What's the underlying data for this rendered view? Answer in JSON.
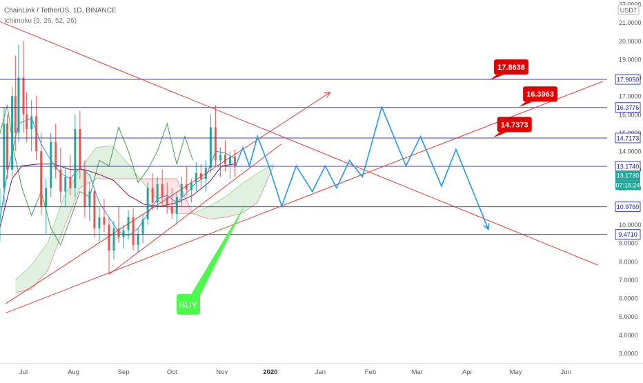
{
  "header": {
    "title": "ChainLink / TetherUS, 1D, BINANCE",
    "indicator": "Ichimoku (9, 26, 52, 26)"
  },
  "colors": {
    "bullish": "#26a69a",
    "bearish": "#ef5350",
    "level_line": "#3f3fd1",
    "trend_line": "#e53935",
    "projection": "#2196f3",
    "ichimoku_conversion": "#2196f3",
    "ichimoku_base": "#880e4f",
    "ichimoku_lagging": "#43a047",
    "ichimoku_lead_a": "#a5d6a7",
    "ichimoku_lead_b": "#ef9a9a",
    "cloud_up": "#c8e6c9",
    "cloud_down": "#ffcdd2",
    "price_badge": "#26a69a",
    "timer_badge": "#26a69a",
    "callout": "#e00000",
    "buy_box": "#4cfa4c"
  },
  "chart_data": {
    "type": "candlestick",
    "symbol": "ChainLink / TetherUS",
    "interval": "1D",
    "exchange": "BINANCE",
    "currency": "USDT",
    "ylim": [
      3.0,
      22.0
    ],
    "y_ticks": [
      "3.0000",
      "4.0000",
      "5.0000",
      "6.0000",
      "7.0000",
      "8.0000",
      "9.0000",
      "10.0000",
      "11.0000",
      "12.0000",
      "13.0000",
      "14.0000",
      "15.0000",
      "16.0000",
      "17.0000",
      "18.0000",
      "19.0000",
      "20.0000",
      "21.0000",
      "22.0000"
    ],
    "x_labels": [
      "Jul",
      "Aug",
      "Sep",
      "Oct",
      "Nov",
      "2020",
      "Jan",
      "Feb",
      "Mar",
      "Apr",
      "May",
      "Jun"
    ],
    "x_label_dates": [
      "2019-07-01",
      "2019-08-01",
      "2019-09-01",
      "2019-10-01",
      "2019-11-01",
      "2019-12-01",
      "2020-01-01",
      "2020-02-01",
      "2020-03-01",
      "2020-04-01",
      "2020-05-01",
      "2020-06-01"
    ],
    "price_levels": [
      {
        "value": 17.905,
        "label": "17.9050"
      },
      {
        "value": 16.3776,
        "label": "16.3776"
      },
      {
        "value": 14.7173,
        "label": "14.7173"
      },
      {
        "value": 13.174,
        "label": "13.1740"
      },
      {
        "value": 10.976,
        "label": "10.9760"
      },
      {
        "value": 9.471,
        "label": "9.4710"
      }
    ],
    "current_price": {
      "value": 13.173,
      "label": "13.1730"
    },
    "countdown": "07:15:24",
    "callouts": [
      {
        "label": "17.8638",
        "date": "2020-04-15",
        "value": 17.8638
      },
      {
        "label": "16.3963",
        "date": "2020-05-03",
        "value": 16.3963
      },
      {
        "label": "14.7373",
        "date": "2020-04-17",
        "value": 14.7373
      }
    ],
    "trend_lines": [
      {
        "from": {
          "date": "2019-06-01",
          "value": 21.6
        },
        "to": {
          "date": "2020-06-21",
          "value": 7.8
        }
      },
      {
        "from": {
          "date": "2019-06-20",
          "value": 5.2
        },
        "to": {
          "date": "2020-06-24",
          "value": 17.8
        }
      },
      {
        "from": {
          "date": "2019-08-23",
          "value": 7.3
        },
        "to": {
          "date": "2019-12-08",
          "value": 14.4
        }
      }
    ],
    "trend_arrow": {
      "from": {
        "date": "2019-06-20",
        "value": 5.7
      },
      "to": {
        "date": "2020-01-07",
        "value": 17.2
      }
    },
    "projection_path": [
      {
        "date": "2019-11-09",
        "value": 13.1
      },
      {
        "date": "2019-11-14",
        "value": 14.2
      },
      {
        "date": "2019-11-18",
        "value": 13.2
      },
      {
        "date": "2019-11-23",
        "value": 14.8
      },
      {
        "date": "2019-11-30",
        "value": 13.2
      },
      {
        "date": "2019-12-08",
        "value": 11.0
      },
      {
        "date": "2019-12-17",
        "value": 13.2
      },
      {
        "date": "2019-12-27",
        "value": 11.8
      },
      {
        "date": "2020-01-04",
        "value": 13.2
      },
      {
        "date": "2020-01-11",
        "value": 12.0
      },
      {
        "date": "2020-01-19",
        "value": 13.5
      },
      {
        "date": "2020-01-27",
        "value": 12.6
      },
      {
        "date": "2020-02-08",
        "value": 16.4
      },
      {
        "date": "2020-02-23",
        "value": 13.2
      },
      {
        "date": "2020-03-03",
        "value": 14.8
      },
      {
        "date": "2020-03-16",
        "value": 12.1
      },
      {
        "date": "2020-03-25",
        "value": 14.1
      },
      {
        "date": "2020-04-14",
        "value": 9.75
      }
    ],
    "buy_signal": {
      "label": "BUY",
      "target": {
        "date": "2019-11-16",
        "value": 11.2
      }
    },
    "candles": [
      [
        "2019-06-01",
        6.8,
        7.4,
        6.5,
        7.1
      ],
      [
        "2019-06-04",
        7.1,
        7.6,
        6.6,
        6.9
      ],
      [
        "2019-06-07",
        6.9,
        7.8,
        6.8,
        7.6
      ],
      [
        "2019-06-10",
        7.6,
        8.6,
        7.3,
        8.4
      ],
      [
        "2019-06-13",
        8.4,
        9.3,
        8.0,
        9.1
      ],
      [
        "2019-06-16",
        9.1,
        12.5,
        8.8,
        12.0
      ],
      [
        "2019-06-19",
        12.0,
        16.4,
        11.0,
        15.5
      ],
      [
        "2019-06-21",
        15.5,
        16.0,
        12.5,
        13.0
      ],
      [
        "2019-06-24",
        13.0,
        17.5,
        12.6,
        17.0
      ],
      [
        "2019-06-26",
        17.0,
        19.2,
        14.0,
        15.0
      ],
      [
        "2019-06-28",
        15.0,
        19.8,
        14.5,
        18.0
      ],
      [
        "2019-07-01",
        18.0,
        20.0,
        15.0,
        16.0
      ],
      [
        "2019-07-03",
        16.0,
        17.2,
        14.5,
        15.2
      ],
      [
        "2019-07-06",
        15.2,
        16.8,
        14.0,
        15.9
      ],
      [
        "2019-07-09",
        15.9,
        17.0,
        13.5,
        14.0
      ],
      [
        "2019-07-12",
        14.0,
        15.0,
        10.5,
        11.0
      ],
      [
        "2019-07-15",
        11.0,
        12.5,
        9.5,
        12.0
      ],
      [
        "2019-07-18",
        12.0,
        15.0,
        11.5,
        14.5
      ],
      [
        "2019-07-21",
        14.5,
        15.5,
        12.5,
        13.0
      ],
      [
        "2019-07-24",
        13.0,
        14.2,
        11.2,
        11.8
      ],
      [
        "2019-07-27",
        11.8,
        13.2,
        11.0,
        12.6
      ],
      [
        "2019-07-30",
        12.6,
        13.8,
        11.6,
        12.0
      ],
      [
        "2019-08-02",
        12.0,
        16.0,
        11.5,
        15.2
      ],
      [
        "2019-08-05",
        15.2,
        16.2,
        12.5,
        13.0
      ],
      [
        "2019-08-08",
        13.0,
        13.5,
        10.4,
        11.0
      ],
      [
        "2019-08-11",
        11.0,
        12.3,
        10.2,
        11.8
      ],
      [
        "2019-08-14",
        11.8,
        12.0,
        9.3,
        9.8
      ],
      [
        "2019-08-17",
        9.8,
        11.0,
        9.0,
        10.4
      ],
      [
        "2019-08-20",
        10.4,
        11.4,
        9.6,
        10.0
      ],
      [
        "2019-08-23",
        10.0,
        10.4,
        7.3,
        8.6
      ],
      [
        "2019-08-26",
        8.6,
        10.2,
        8.1,
        9.8
      ],
      [
        "2019-08-29",
        9.8,
        11.0,
        9.0,
        9.3
      ],
      [
        "2019-09-01",
        9.3,
        10.0,
        8.7,
        9.7
      ],
      [
        "2019-09-04",
        9.7,
        10.8,
        9.2,
        10.4
      ],
      [
        "2019-09-07",
        10.4,
        10.9,
        8.6,
        8.9
      ],
      [
        "2019-09-10",
        8.9,
        9.8,
        8.5,
        9.5
      ],
      [
        "2019-09-13",
        9.5,
        10.6,
        9.0,
        10.3
      ],
      [
        "2019-09-16",
        10.3,
        12.3,
        10.0,
        12.0
      ],
      [
        "2019-09-19",
        12.0,
        12.8,
        10.8,
        11.2
      ],
      [
        "2019-09-22",
        11.2,
        12.6,
        10.8,
        12.2
      ],
      [
        "2019-09-25",
        12.2,
        13.0,
        11.0,
        11.5
      ],
      [
        "2019-09-28",
        11.5,
        12.3,
        10.6,
        11.0
      ],
      [
        "2019-10-01",
        11.0,
        12.0,
        10.3,
        10.6
      ],
      [
        "2019-10-04",
        10.6,
        11.8,
        10.0,
        11.5
      ],
      [
        "2019-10-07",
        11.5,
        12.6,
        11.0,
        12.2
      ],
      [
        "2019-10-10",
        12.2,
        13.2,
        11.6,
        11.9
      ],
      [
        "2019-10-13",
        11.9,
        12.5,
        11.2,
        12.3
      ],
      [
        "2019-10-16",
        12.3,
        13.4,
        11.8,
        12.8
      ],
      [
        "2019-10-19",
        12.8,
        13.3,
        12.0,
        12.5
      ],
      [
        "2019-10-22",
        12.5,
        13.5,
        11.8,
        13.1
      ],
      [
        "2019-10-25",
        13.1,
        16.0,
        12.8,
        15.3
      ],
      [
        "2019-10-28",
        15.3,
        16.5,
        13.2,
        13.5
      ],
      [
        "2019-10-31",
        13.5,
        14.2,
        12.6,
        13.8
      ],
      [
        "2019-11-03",
        13.8,
        14.6,
        12.9,
        13.3
      ],
      [
        "2019-11-06",
        13.3,
        14.0,
        12.5,
        13.7
      ],
      [
        "2019-11-09",
        13.7,
        14.1,
        12.6,
        13.17
      ]
    ],
    "ichimoku": {
      "conversion_line": [
        [
          "2019-06-01",
          6.9
        ],
        [
          "2019-06-10",
          7.6
        ],
        [
          "2019-06-16",
          10.0
        ],
        [
          "2019-06-21",
          12.8
        ],
        [
          "2019-06-28",
          15.5
        ],
        [
          "2019-07-06",
          15.8
        ],
        [
          "2019-07-12",
          14.4
        ],
        [
          "2019-07-18",
          13.5
        ],
        [
          "2019-07-24",
          12.8
        ],
        [
          "2019-07-30",
          12.5
        ],
        [
          "2019-08-05",
          13.1
        ],
        [
          "2019-08-11",
          12.7
        ],
        [
          "2019-08-17",
          11.2
        ],
        [
          "2019-08-23",
          10.4
        ],
        [
          "2019-08-29",
          9.6
        ],
        [
          "2019-09-04",
          9.4
        ],
        [
          "2019-09-10",
          9.8
        ],
        [
          "2019-09-16",
          10.6
        ],
        [
          "2019-09-22",
          11.4
        ],
        [
          "2019-09-28",
          11.6
        ],
        [
          "2019-10-04",
          11.2
        ],
        [
          "2019-10-10",
          11.7
        ],
        [
          "2019-10-16",
          12.3
        ],
        [
          "2019-10-22",
          12.6
        ],
        [
          "2019-10-28",
          14.0
        ],
        [
          "2019-11-03",
          13.9
        ],
        [
          "2019-11-09",
          13.6
        ]
      ],
      "base_line": [
        [
          "2019-06-01",
          7.2
        ],
        [
          "2019-06-10",
          8.4
        ],
        [
          "2019-06-16",
          9.7
        ],
        [
          "2019-06-24",
          12.5
        ],
        [
          "2019-06-30",
          13.2
        ],
        [
          "2019-07-10",
          13.3
        ],
        [
          "2019-07-20",
          13.3
        ],
        [
          "2019-07-30",
          13.0
        ],
        [
          "2019-08-08",
          13.0
        ],
        [
          "2019-08-18",
          12.7
        ],
        [
          "2019-08-26",
          12.4
        ],
        [
          "2019-09-04",
          11.6
        ],
        [
          "2019-09-14",
          11.1
        ],
        [
          "2019-09-24",
          11.0
        ],
        [
          "2019-10-04",
          11.2
        ],
        [
          "2019-10-14",
          11.6
        ],
        [
          "2019-10-24",
          12.3
        ],
        [
          "2019-11-01",
          13.2
        ],
        [
          "2019-11-09",
          13.3
        ]
      ],
      "lagging_span": [
        [
          "2019-06-01",
          7.1
        ],
        [
          "2019-06-09",
          9.5
        ],
        [
          "2019-06-15",
          14.5
        ],
        [
          "2019-06-21",
          16.5
        ],
        [
          "2019-06-25",
          14.0
        ],
        [
          "2019-06-30",
          12.0
        ],
        [
          "2019-07-06",
          10.5
        ],
        [
          "2019-07-12",
          11.8
        ],
        [
          "2019-07-18",
          9.8
        ],
        [
          "2019-07-24",
          8.9
        ],
        [
          "2019-07-30",
          10.3
        ],
        [
          "2019-08-05",
          11.8
        ],
        [
          "2019-08-11",
          11.5
        ],
        [
          "2019-08-17",
          13.5
        ],
        [
          "2019-08-23",
          13.2
        ],
        [
          "2019-08-29",
          15.3
        ],
        [
          "2019-09-04",
          14.0
        ],
        [
          "2019-09-10",
          12.3
        ],
        [
          "2019-09-16",
          13.0
        ],
        [
          "2019-09-22",
          14.0
        ],
        [
          "2019-09-28",
          15.5
        ],
        [
          "2019-10-04",
          13.3
        ],
        [
          "2019-10-09",
          14.8
        ],
        [
          "2019-10-14",
          13.5
        ]
      ],
      "leading_span_a": [
        [
          "2019-06-26",
          7.0
        ],
        [
          "2019-07-06",
          7.8
        ],
        [
          "2019-07-16",
          9.0
        ],
        [
          "2019-07-26",
          11.5
        ],
        [
          "2019-08-05",
          13.0
        ],
        [
          "2019-08-15",
          14.2
        ],
        [
          "2019-08-25",
          14.3
        ],
        [
          "2019-09-04",
          13.3
        ],
        [
          "2019-09-14",
          12.2
        ],
        [
          "2019-09-24",
          11.2
        ],
        [
          "2019-10-04",
          10.6
        ],
        [
          "2019-10-14",
          10.6
        ],
        [
          "2019-10-24",
          11.0
        ],
        [
          "2019-11-03",
          11.5
        ],
        [
          "2019-11-13",
          12.2
        ],
        [
          "2019-11-23",
          12.8
        ],
        [
          "2019-12-03",
          13.3
        ]
      ],
      "leading_span_b": [
        [
          "2019-06-26",
          6.3
        ],
        [
          "2019-07-06",
          6.5
        ],
        [
          "2019-07-16",
          7.5
        ],
        [
          "2019-07-26",
          9.8
        ],
        [
          "2019-08-05",
          12.0
        ],
        [
          "2019-08-15",
          12.5
        ],
        [
          "2019-08-25",
          12.5
        ],
        [
          "2019-09-04",
          12.5
        ],
        [
          "2019-09-14",
          12.5
        ],
        [
          "2019-09-24",
          12.5
        ],
        [
          "2019-10-04",
          12.5
        ],
        [
          "2019-10-14",
          10.6
        ],
        [
          "2019-10-24",
          10.3
        ],
        [
          "2019-11-03",
          10.4
        ],
        [
          "2019-11-13",
          10.6
        ],
        [
          "2019-11-23",
          11.2
        ],
        [
          "2019-12-03",
          13.2
        ]
      ]
    }
  }
}
